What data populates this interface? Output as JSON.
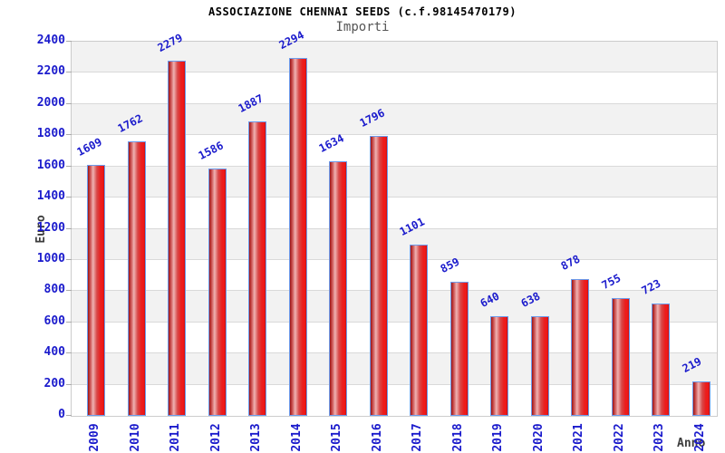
{
  "chart_data": {
    "type": "bar",
    "title": "ASSOCIAZIONE CHENNAI SEEDS (c.f.98145470179)",
    "subtitle": "Importi",
    "xlabel": "Anno",
    "ylabel": "Euro",
    "categories": [
      "2009",
      "2010",
      "2011",
      "2012",
      "2013",
      "2014",
      "2015",
      "2016",
      "2017",
      "2018",
      "2019",
      "2020",
      "2021",
      "2022",
      "2023",
      "2024"
    ],
    "values": [
      1609,
      1762,
      2279,
      1586,
      1887,
      2294,
      1634,
      1796,
      1101,
      859,
      640,
      638,
      878,
      755,
      723,
      219
    ],
    "ylim": [
      0,
      2400
    ],
    "ytick_step": 200,
    "grid": true,
    "legend": false,
    "band_fill_alternating": true,
    "colors": {
      "bar_fill_dark": "#b01414",
      "bar_fill_light": "#efb2b2",
      "bar_border": "#6c9ced",
      "axis_tick_label": "#1a1acc",
      "value_label": "#1a1acc",
      "band_gray": "#f2f2f2",
      "band_white": "#ffffff",
      "grid_line": "#d9d9d9",
      "plot_border": "#cccccc",
      "title_color": "#000000",
      "subtitle_color": "#555555",
      "axis_title_color": "#3c3c3c"
    }
  }
}
